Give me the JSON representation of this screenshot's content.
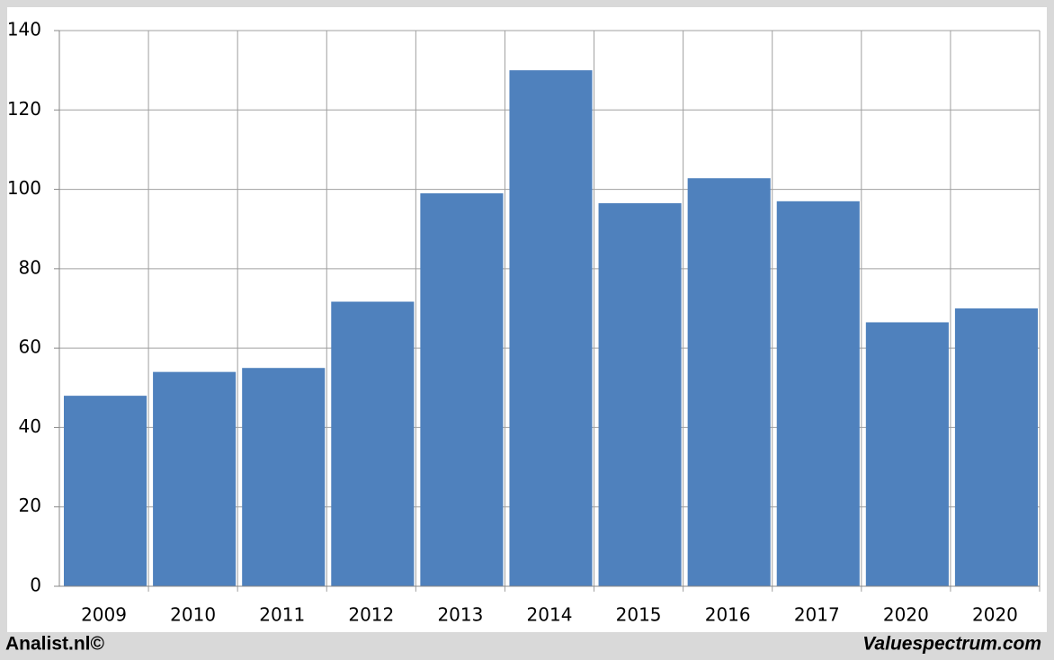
{
  "chart_data": {
    "type": "bar",
    "categories": [
      "2009",
      "2010",
      "2011",
      "2012",
      "2013",
      "2014",
      "2015",
      "2016",
      "2017",
      "2020",
      "2020"
    ],
    "values": [
      48,
      54,
      55,
      71.7,
      99,
      130,
      96.5,
      102.8,
      97,
      66.5,
      70
    ],
    "color": "#4f81bd",
    "ylim": [
      0,
      140
    ],
    "yticks": [
      0,
      20,
      40,
      60,
      80,
      100,
      120,
      140
    ],
    "grid": true
  },
  "footer": {
    "left": "Analist.nl©",
    "right": "Valuespectrum.com"
  }
}
